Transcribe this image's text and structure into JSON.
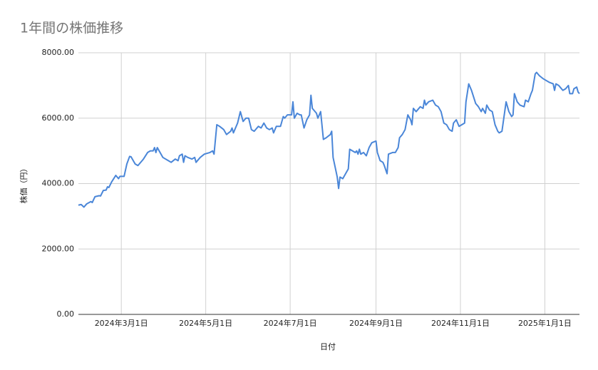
{
  "chart_data": {
    "type": "line",
    "title": "1年間の株価推移",
    "xlabel": "日付",
    "ylabel": "株価（円）",
    "color": "#4a86d8",
    "grid": true,
    "xlim": [
      "2024-01-30",
      "2025-01-26"
    ],
    "xticks": [
      {
        "value": "2024-03-01",
        "label": "2024年3月1日"
      },
      {
        "value": "2024-05-01",
        "label": "2024年5月1日"
      },
      {
        "value": "2024-07-01",
        "label": "2024年7月1日"
      },
      {
        "value": "2024-09-01",
        "label": "2024年9月1日"
      },
      {
        "value": "2024-11-01",
        "label": "2024年11月1日"
      },
      {
        "value": "2025-01-01",
        "label": "2025年1月1日"
      }
    ],
    "ylim": [
      0,
      8000
    ],
    "yticks": [
      {
        "value": 0,
        "label": "0.00"
      },
      {
        "value": 2000,
        "label": "2000.00"
      },
      {
        "value": 4000,
        "label": "4000.00"
      },
      {
        "value": 6000,
        "label": "6000.00"
      },
      {
        "value": 8000,
        "label": "8000.00"
      }
    ],
    "x": [
      "2024-01-30",
      "2024-02-01",
      "2024-02-03",
      "2024-02-05",
      "2024-02-08",
      "2024-02-09",
      "2024-02-11",
      "2024-02-14",
      "2024-02-15",
      "2024-02-17",
      "2024-02-19",
      "2024-02-20",
      "2024-02-21",
      "2024-02-23",
      "2024-02-26",
      "2024-02-28",
      "2024-02-29",
      "2024-03-03",
      "2024-03-05",
      "2024-03-07",
      "2024-03-08",
      "2024-03-11",
      "2024-03-13",
      "2024-03-17",
      "2024-03-20",
      "2024-03-22",
      "2024-03-24",
      "2024-03-25",
      "2024-03-26",
      "2024-03-27",
      "2024-03-31",
      "2024-04-04",
      "2024-04-06",
      "2024-04-09",
      "2024-04-11",
      "2024-04-12",
      "2024-04-14",
      "2024-04-15",
      "2024-04-16",
      "2024-04-18",
      "2024-04-21",
      "2024-04-23",
      "2024-04-24",
      "2024-04-27",
      "2024-04-30",
      "2024-05-04",
      "2024-05-06",
      "2024-05-07",
      "2024-05-09",
      "2024-05-11",
      "2024-05-14",
      "2024-05-16",
      "2024-05-19",
      "2024-05-20",
      "2024-05-21",
      "2024-05-24",
      "2024-05-26",
      "2024-05-28",
      "2024-05-30",
      "2024-06-01",
      "2024-06-03",
      "2024-06-05",
      "2024-06-08",
      "2024-06-10",
      "2024-06-12",
      "2024-06-14",
      "2024-06-16",
      "2024-06-18",
      "2024-06-19",
      "2024-06-21",
      "2024-06-24",
      "2024-06-26",
      "2024-06-27",
      "2024-06-29",
      "2024-07-02",
      "2024-07-03",
      "2024-07-04",
      "2024-07-06",
      "2024-07-08",
      "2024-07-09",
      "2024-07-11",
      "2024-07-13",
      "2024-07-15",
      "2024-07-16",
      "2024-07-17",
      "2024-07-20",
      "2024-07-21",
      "2024-07-23",
      "2024-07-25",
      "2024-07-27",
      "2024-07-30",
      "2024-07-31",
      "2024-08-01",
      "2024-08-04",
      "2024-08-05",
      "2024-08-06",
      "2024-08-08",
      "2024-08-12",
      "2024-08-13",
      "2024-08-15",
      "2024-08-17",
      "2024-08-18",
      "2024-08-19",
      "2024-08-20",
      "2024-08-21",
      "2024-08-23",
      "2024-08-25",
      "2024-08-27",
      "2024-08-29",
      "2024-09-01",
      "2024-09-02",
      "2024-09-04",
      "2024-09-06",
      "2024-09-07",
      "2024-09-09",
      "2024-09-10",
      "2024-09-13",
      "2024-09-15",
      "2024-09-17",
      "2024-09-18",
      "2024-09-20",
      "2024-09-22",
      "2024-09-24",
      "2024-09-26",
      "2024-09-27",
      "2024-09-28",
      "2024-09-30",
      "2024-10-03",
      "2024-10-05",
      "2024-10-06",
      "2024-10-07",
      "2024-10-09",
      "2024-10-12",
      "2024-10-14",
      "2024-10-16",
      "2024-10-18",
      "2024-10-20",
      "2024-10-22",
      "2024-10-24",
      "2024-10-26",
      "2024-10-27",
      "2024-10-29",
      "2024-10-31",
      "2024-11-04",
      "2024-11-05",
      "2024-11-07",
      "2024-11-09",
      "2024-11-12",
      "2024-11-14",
      "2024-11-16",
      "2024-11-17",
      "2024-11-19",
      "2024-11-20",
      "2024-11-22",
      "2024-11-24",
      "2024-11-26",
      "2024-11-28",
      "2024-11-29",
      "2024-12-01",
      "2024-12-03",
      "2024-12-04",
      "2024-12-06",
      "2024-12-08",
      "2024-12-09",
      "2024-12-10",
      "2024-12-12",
      "2024-12-14",
      "2024-12-17",
      "2024-12-18",
      "2024-12-20",
      "2024-12-22",
      "2024-12-23",
      "2024-12-25",
      "2024-12-26",
      "2024-12-28",
      "2024-12-31",
      "2025-01-04",
      "2025-01-07",
      "2025-01-08",
      "2025-01-09",
      "2025-01-11",
      "2025-01-12",
      "2025-01-14",
      "2025-01-16",
      "2025-01-18",
      "2025-01-19",
      "2025-01-21",
      "2025-01-22",
      "2025-01-24",
      "2025-01-25",
      "2025-01-26"
    ],
    "values": [
      3340,
      3360,
      3280,
      3380,
      3450,
      3420,
      3600,
      3630,
      3620,
      3790,
      3800,
      3900,
      3880,
      4050,
      4250,
      4150,
      4220,
      4220,
      4600,
      4830,
      4820,
      4600,
      4550,
      4750,
      4950,
      5000,
      5000,
      5100,
      4950,
      5100,
      4800,
      4700,
      4650,
      4750,
      4700,
      4850,
      4900,
      4650,
      4850,
      4800,
      4750,
      4800,
      4650,
      4800,
      4900,
      4950,
      5000,
      4900,
      5800,
      5750,
      5650,
      5500,
      5600,
      5700,
      5550,
      5850,
      6200,
      5900,
      6000,
      6000,
      5650,
      5600,
      5750,
      5700,
      5850,
      5700,
      5650,
      5700,
      5550,
      5750,
      5750,
      6050,
      6000,
      6100,
      6100,
      6500,
      6000,
      6150,
      6100,
      6100,
      5700,
      5950,
      6100,
      6700,
      6300,
      6150,
      6000,
      6200,
      5350,
      5400,
      5500,
      5600,
      4800,
      4200,
      3850,
      4200,
      4150,
      4450,
      5050,
      5000,
      4950,
      5000,
      4900,
      5050,
      4900,
      4950,
      4850,
      5100,
      5250,
      5300,
      4950,
      4700,
      4650,
      4550,
      4300,
      4900,
      4950,
      4950,
      5100,
      5400,
      5500,
      5650,
      6100,
      5950,
      5800,
      6300,
      6200,
      6350,
      6300,
      6550,
      6400,
      6500,
      6550,
      6400,
      6350,
      6200,
      5850,
      5800,
      5650,
      5600,
      5850,
      5950,
      5750,
      5850,
      6500,
      7050,
      6850,
      6450,
      6350,
      6200,
      6300,
      6150,
      6400,
      6250,
      6200,
      5800,
      5600,
      5550,
      5600,
      6200,
      6500,
      6200,
      6050,
      6100,
      6750,
      6500,
      6400,
      6350,
      6550,
      6500,
      6750,
      6850,
      7350,
      7400,
      7300,
      7200,
      7100,
      7050,
      6850,
      7050,
      7000,
      6950,
      6850,
      6900,
      7000,
      6750,
      6750,
      6900,
      6950,
      6800,
      6750
    ]
  }
}
